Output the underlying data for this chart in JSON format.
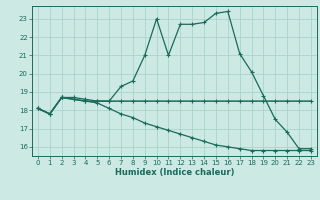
{
  "xlabel": "Humidex (Indice chaleur)",
  "background_color": "#cce9e3",
  "grid_color": "#aad4cc",
  "line_color": "#1a6b5a",
  "xlim": [
    -0.5,
    23.5
  ],
  "ylim": [
    15.5,
    23.7
  ],
  "xticks": [
    0,
    1,
    2,
    3,
    4,
    5,
    6,
    7,
    8,
    9,
    10,
    11,
    12,
    13,
    14,
    15,
    16,
    17,
    18,
    19,
    20,
    21,
    22,
    23
  ],
  "yticks": [
    16,
    17,
    18,
    19,
    20,
    21,
    22,
    23
  ],
  "line1_x": [
    0,
    1,
    2,
    3,
    4,
    5,
    6,
    7,
    8,
    9,
    10,
    11,
    12,
    13,
    14,
    15,
    16,
    17,
    18,
    19,
    20,
    21,
    22,
    23
  ],
  "line1_y": [
    18.1,
    17.8,
    18.7,
    18.7,
    18.6,
    18.5,
    18.5,
    19.3,
    19.6,
    21.0,
    23.0,
    21.0,
    22.7,
    22.7,
    22.8,
    23.3,
    23.4,
    21.1,
    20.1,
    18.8,
    17.5,
    16.8,
    15.9,
    15.9
  ],
  "line2_x": [
    0,
    1,
    2,
    3,
    4,
    5,
    6,
    7,
    8,
    9,
    10,
    11,
    12,
    13,
    14,
    15,
    16,
    17,
    18,
    19,
    20,
    21,
    22,
    23
  ],
  "line2_y": [
    18.1,
    17.8,
    18.7,
    18.6,
    18.5,
    18.5,
    18.5,
    18.5,
    18.5,
    18.5,
    18.5,
    18.5,
    18.5,
    18.5,
    18.5,
    18.5,
    18.5,
    18.5,
    18.5,
    18.5,
    18.5,
    18.5,
    18.5,
    18.5
  ],
  "line3_x": [
    0,
    1,
    2,
    3,
    4,
    5,
    6,
    7,
    8,
    9,
    10,
    11,
    12,
    13,
    14,
    15,
    16,
    17,
    18,
    19,
    20,
    21,
    22,
    23
  ],
  "line3_y": [
    18.1,
    17.8,
    18.7,
    18.6,
    18.5,
    18.4,
    18.1,
    17.8,
    17.6,
    17.3,
    17.1,
    16.9,
    16.7,
    16.5,
    16.3,
    16.1,
    16.0,
    15.9,
    15.8,
    15.8,
    15.8,
    15.8,
    15.8,
    15.8
  ]
}
